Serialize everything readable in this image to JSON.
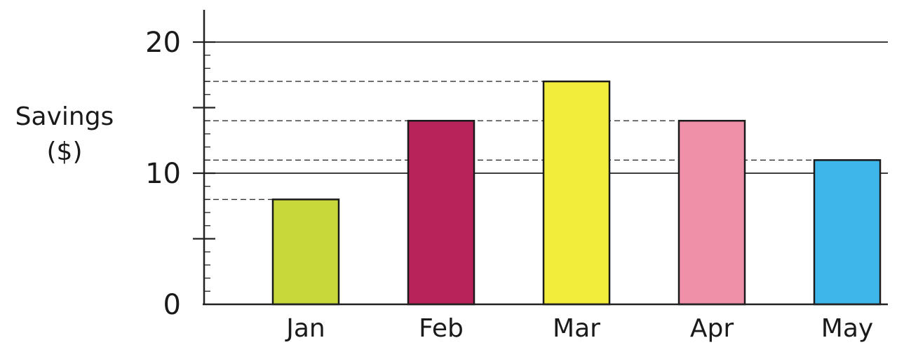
{
  "chart_data": {
    "type": "bar",
    "title": "",
    "ylabel_line1": "Savings",
    "ylabel_line2": "($)",
    "xlabel": "",
    "categories": [
      "Jan",
      "Feb",
      "Mar",
      "Apr",
      "May"
    ],
    "values": [
      8,
      14,
      17,
      14,
      11
    ],
    "ylim": [
      0,
      20
    ],
    "y_ticks_labeled": [
      "0",
      "10",
      "20"
    ],
    "y_ticks_labeled_values": [
      0,
      10,
      20
    ],
    "major_tick_values": [
      5,
      10,
      15,
      20
    ],
    "minor_tick_step": 1,
    "solid_gridlines": [
      10,
      20
    ],
    "dashed_reference_lines": [
      {
        "value": 17,
        "from_category": 2
      },
      {
        "value": 14,
        "from_category": 3
      },
      {
        "value": 11,
        "from_category": 4
      },
      {
        "value": 8,
        "from_category": 0
      }
    ],
    "bar_colors": [
      "#c8d83a",
      "#b8235a",
      "#f2ec3a",
      "#ef8fa8",
      "#3fb6ea"
    ],
    "grid": false,
    "legend": "none"
  }
}
